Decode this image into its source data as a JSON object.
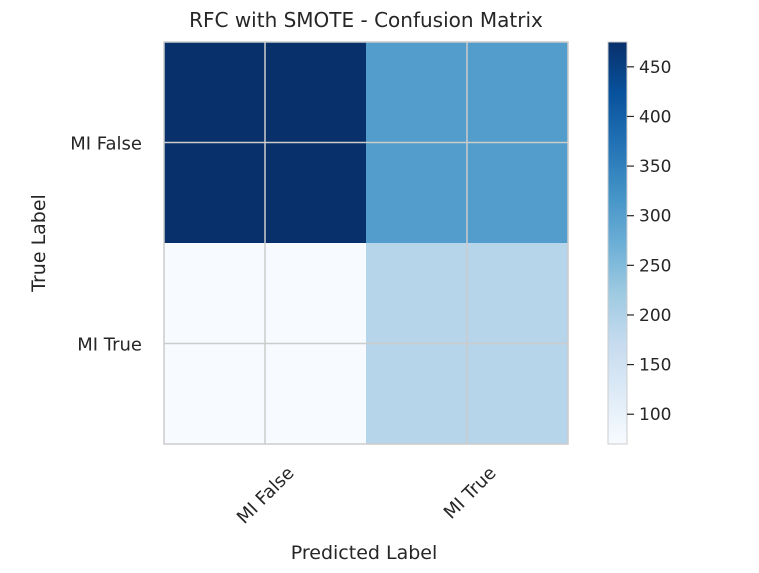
{
  "chart_data": {
    "type": "heatmap",
    "title": "RFC with SMOTE - Confusion Matrix",
    "xlabel": "Predicted Label",
    "ylabel": "True Label",
    "x_categories": [
      "MI False",
      "MI True"
    ],
    "y_categories": [
      "MI False",
      "MI True"
    ],
    "values": [
      [
        475,
        303
      ],
      [
        70,
        191
      ]
    ],
    "colormap": "Blues",
    "colorbar": {
      "range": [
        70,
        475
      ],
      "ticks": [
        100,
        150,
        200,
        250,
        300,
        350,
        400,
        450
      ]
    },
    "grid": true
  },
  "colors": {
    "grid": "#cccccc",
    "text": "#262626",
    "axis_spine": "#cccccc"
  }
}
